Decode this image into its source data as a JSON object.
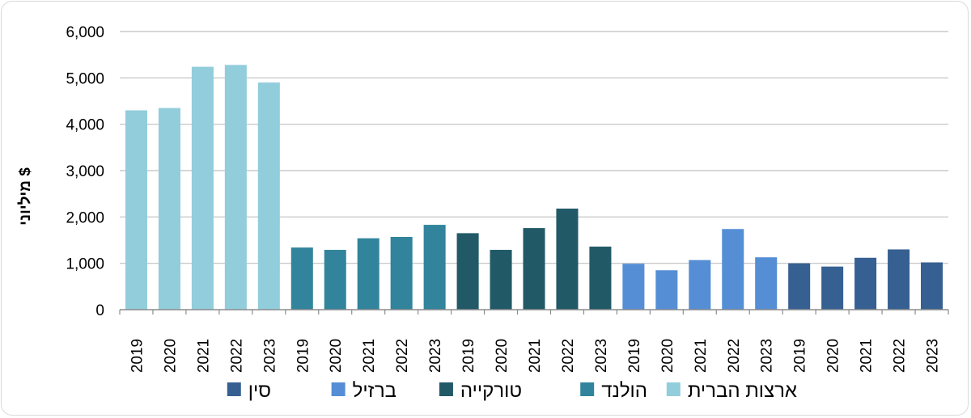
{
  "chart_data": {
    "type": "bar",
    "ylabel": "מיליוני $",
    "ylim": [
      0,
      6000
    ],
    "yticks": [
      "0",
      "1,000",
      "2,000",
      "3,000",
      "4,000",
      "5,000",
      "6,000"
    ],
    "grid": true,
    "legend_position": "bottom",
    "categories": [
      "2019",
      "2020",
      "2021",
      "2022",
      "2023"
    ],
    "series": [
      {
        "name": "ארצות הברית",
        "color": "#92CDDC",
        "values": [
          4300,
          4350,
          5240,
          5280,
          4900
        ]
      },
      {
        "name": "הולנד",
        "color": "#31849B",
        "values": [
          1340,
          1290,
          1540,
          1570,
          1830
        ]
      },
      {
        "name": "טורקייה",
        "color": "#215967",
        "values": [
          1650,
          1290,
          1760,
          2180,
          1360
        ]
      },
      {
        "name": "ברזיל",
        "color": "#558ED5",
        "values": [
          990,
          850,
          1070,
          1740,
          1130
        ]
      },
      {
        "name": "סין",
        "color": "#376092",
        "values": [
          1000,
          930,
          1120,
          1300,
          1020
        ]
      }
    ]
  }
}
